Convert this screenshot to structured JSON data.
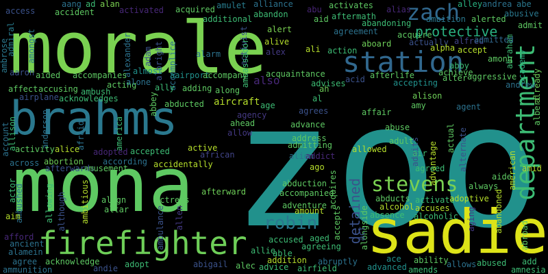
{
  "words": [
    {
      "text": "zoo",
      "color": "#21918c"
    },
    {
      "text": "morale",
      "color": "#7ad151"
    },
    {
      "text": "mona",
      "color": "#5ec962"
    },
    {
      "text": "brahms",
      "color": "#2a788e"
    },
    {
      "text": "sadie",
      "color": "#dde318"
    },
    {
      "text": "firefighter",
      "color": "#6ece58"
    },
    {
      "text": "department",
      "color": "#3dbc74"
    },
    {
      "text": "station",
      "color": "#31688e"
    },
    {
      "text": "zach",
      "color": "#31688e"
    },
    {
      "text": "stevens",
      "color": "#7ad151"
    },
    {
      "text": "protective",
      "color": "#29af7f"
    },
    {
      "text": "robin",
      "color": "#2a788e"
    },
    {
      "text": "detained",
      "color": "#3b528b"
    },
    {
      "text": "access",
      "color": "#3b528b"
    },
    {
      "text": "aang",
      "color": "#2c728e"
    },
    {
      "text": "accident",
      "color": "#5ec962"
    },
    {
      "text": "ad",
      "color": "#3dbc74"
    },
    {
      "text": "alan",
      "color": "#7ad151"
    },
    {
      "text": "activated",
      "color": "#482878"
    },
    {
      "text": "acquired",
      "color": "#5ec962"
    },
    {
      "text": "additional",
      "color": "#3dbc74"
    },
    {
      "text": "amulet",
      "color": "#287c8e"
    },
    {
      "text": "alliance",
      "color": "#2c728e"
    },
    {
      "text": "abandon",
      "color": "#3dbc74"
    },
    {
      "text": "abu",
      "color": "#482475"
    },
    {
      "text": "activates",
      "color": "#5ec962"
    },
    {
      "text": "aftermath",
      "color": "#3dbc74"
    },
    {
      "text": "alias",
      "color": "#482878"
    },
    {
      "text": "alley",
      "color": "#29af7f"
    },
    {
      "text": "andrea",
      "color": "#2c728e"
    },
    {
      "text": "abe",
      "color": "#2a788e"
    },
    {
      "text": "aid",
      "color": "#5ec962"
    },
    {
      "text": "ambition",
      "color": "#2a788e"
    },
    {
      "text": "alerted",
      "color": "#5ec962"
    },
    {
      "text": "abusive",
      "color": "#2a788e"
    },
    {
      "text": "abandoning",
      "color": "#3dbc74"
    },
    {
      "text": "admit",
      "color": "#5ec962"
    },
    {
      "text": "admiral",
      "color": "#287c8e"
    },
    {
      "text": "amongst",
      "color": "#2a788e"
    },
    {
      "text": "alert",
      "color": "#7ad151"
    },
    {
      "text": "agreement",
      "color": "#2c728e"
    },
    {
      "text": "acquire",
      "color": "#5ec962"
    },
    {
      "text": "abraham",
      "color": "#3dbc74"
    },
    {
      "text": "academy",
      "color": "#29af7f"
    },
    {
      "text": "aboard",
      "color": "#6ece58"
    },
    {
      "text": "actually",
      "color": "#3b528b"
    },
    {
      "text": "alfred",
      "color": "#414487"
    },
    {
      "text": "admitted",
      "color": "#31688e"
    },
    {
      "text": "accept",
      "color": "#b5de2b"
    },
    {
      "text": "alpha",
      "color": "#b5de2b"
    },
    {
      "text": "alive",
      "color": "#b5de2b"
    },
    {
      "text": "activist",
      "color": "#3b528b"
    },
    {
      "text": "alex",
      "color": "#443983"
    },
    {
      "text": "ali",
      "color": "#b5de2b"
    },
    {
      "text": "action",
      "color": "#3dbc74"
    },
    {
      "text": "ambrose",
      "color": "#2a788e"
    },
    {
      "text": "alexander",
      "color": "#2c728e"
    },
    {
      "text": "adam",
      "color": "#3b528b"
    },
    {
      "text": "albright",
      "color": "#3b528b"
    },
    {
      "text": "accomplice",
      "color": "#2c728e"
    },
    {
      "text": "alarm",
      "color": "#2c728e"
    },
    {
      "text": "ambassador",
      "color": "#3dbc74"
    },
    {
      "text": "among",
      "color": "#5ec962"
    },
    {
      "text": "abby",
      "color": "#3dbc74"
    },
    {
      "text": "achieve",
      "color": "#5ec962"
    },
    {
      "text": "aggressive",
      "color": "#5ec962"
    },
    {
      "text": "andrew",
      "color": "#2c728e"
    },
    {
      "text": "aaron",
      "color": "#3b528b"
    },
    {
      "text": "aided",
      "color": "#5ec962"
    },
    {
      "text": "accompanies",
      "color": "#5ec962"
    },
    {
      "text": "almost",
      "color": "#21918c"
    },
    {
      "text": "aairport",
      "color": "#21918c"
    },
    {
      "text": "accompany",
      "color": "#5ec962"
    },
    {
      "text": "also",
      "color": "#482878"
    },
    {
      "text": "acquaintance",
      "color": "#5ec962"
    },
    {
      "text": "afterlife",
      "color": "#5ec962"
    },
    {
      "text": "alter",
      "color": "#5ec962"
    },
    {
      "text": "acting",
      "color": "#5ec962"
    },
    {
      "text": "alone",
      "color": "#2c728e"
    },
    {
      "text": "ally",
      "color": "#3dbc74"
    },
    {
      "text": "adding",
      "color": "#5ec962"
    },
    {
      "text": "acid",
      "color": "#3b528b"
    },
    {
      "text": "advises",
      "color": "#3dbc74"
    },
    {
      "text": "accepting",
      "color": "#21918c"
    },
    {
      "text": "affect",
      "color": "#5ec962"
    },
    {
      "text": "accusing",
      "color": "#5ec962"
    },
    {
      "text": "ambush",
      "color": "#3dbc74"
    },
    {
      "text": "along",
      "color": "#5ec962"
    },
    {
      "text": "ah",
      "color": "#6ece58"
    },
    {
      "text": "alison",
      "color": "#6ece58"
    },
    {
      "text": "airplane",
      "color": "#3b528b"
    },
    {
      "text": "acknowledges",
      "color": "#3dbc74"
    },
    {
      "text": "abbey",
      "color": "#5ec962"
    },
    {
      "text": "abducted",
      "color": "#5ec962"
    },
    {
      "text": "aircraft",
      "color": "#b5de2b"
    },
    {
      "text": "al",
      "color": "#3dbc74"
    },
    {
      "text": "amy",
      "color": "#5ec962"
    },
    {
      "text": "agent",
      "color": "#2c728e"
    },
    {
      "text": "albert",
      "color": "#5ec962"
    },
    {
      "text": "already",
      "color": "#6ece58"
    },
    {
      "text": "age",
      "color": "#3dbc74"
    },
    {
      "text": "affair",
      "color": "#5ec962"
    },
    {
      "text": "agrees",
      "color": "#3b528b"
    },
    {
      "text": "allison",
      "color": "#3dbc74"
    },
    {
      "text": "anderson",
      "color": "#2c728e"
    },
    {
      "text": "america",
      "color": "#3dbc74"
    },
    {
      "text": "agency",
      "color": "#443983"
    },
    {
      "text": "ahead",
      "color": "#5ec962"
    },
    {
      "text": "abuse",
      "color": "#5ec962"
    },
    {
      "text": "actual",
      "color": "#5ec962"
    },
    {
      "text": "alternate",
      "color": "#3b528b"
    },
    {
      "text": "account",
      "color": "#2c728e"
    },
    {
      "text": "afraid",
      "color": "#2c728e"
    },
    {
      "text": "allow",
      "color": "#443983"
    },
    {
      "text": "advance",
      "color": "#5ec962"
    },
    {
      "text": "adult",
      "color": "#5ec962"
    },
    {
      "text": "admits",
      "color": "#3b528b"
    },
    {
      "text": "advantage",
      "color": "#b5de2b"
    },
    {
      "text": "activity",
      "color": "#5ec962"
    },
    {
      "text": "alice",
      "color": "#b5de2b"
    },
    {
      "text": "adopted",
      "color": "#482878"
    },
    {
      "text": "accepted",
      "color": "#3dbc74"
    },
    {
      "text": "active",
      "color": "#b5de2b"
    },
    {
      "text": "address",
      "color": "#5ec962"
    },
    {
      "text": "allowed",
      "color": "#b5de2b"
    },
    {
      "text": "american",
      "color": "#b5de2b"
    },
    {
      "text": "across",
      "color": "#2c728e"
    },
    {
      "text": "abortion",
      "color": "#6ece58"
    },
    {
      "text": "according",
      "color": "#2c728e"
    },
    {
      "text": "african",
      "color": "#414487"
    },
    {
      "text": "admitting",
      "color": "#5ec962"
    },
    {
      "text": "alien",
      "color": "#2c728e"
    },
    {
      "text": "addict",
      "color": "#482878"
    },
    {
      "text": "air",
      "color": "#3dbc74"
    },
    {
      "text": "afterwards",
      "color": "#3b528b"
    },
    {
      "text": "amusement",
      "color": "#5ec962"
    },
    {
      "text": "accidentally",
      "color": "#b5de2b"
    },
    {
      "text": "ago",
      "color": "#b5de2b"
    },
    {
      "text": "agreed",
      "color": "#3dbc74"
    },
    {
      "text": "amid",
      "color": "#b5de2b"
    },
    {
      "text": "aide",
      "color": "#5ec962"
    },
    {
      "text": "always",
      "color": "#5ec962"
    },
    {
      "text": "actor",
      "color": "#3dbc74"
    },
    {
      "text": "ambushed",
      "color": "#2c728e"
    },
    {
      "text": "ambitious",
      "color": "#b5de2b"
    },
    {
      "text": "align",
      "color": "#5ec962"
    },
    {
      "text": "altar",
      "color": "#5ec962"
    },
    {
      "text": "afterward",
      "color": "#6ece58"
    },
    {
      "text": "abduction",
      "color": "#5ec962"
    },
    {
      "text": "accompanied",
      "color": "#5ec962"
    },
    {
      "text": "acquires",
      "color": "#5ec962"
    },
    {
      "text": "abducts",
      "color": "#5ec962"
    },
    {
      "text": "activate",
      "color": "#3dbc74"
    },
    {
      "text": "adoptive",
      "color": "#b5de2b"
    },
    {
      "text": "abandoned",
      "color": "#b5de2b"
    },
    {
      "text": "aim",
      "color": "#b5de2b"
    },
    {
      "text": "allowing",
      "color": "#3dbc74"
    },
    {
      "text": "although",
      "color": "#3b528b"
    },
    {
      "text": "actress",
      "color": "#5ec962"
    },
    {
      "text": "ambulance",
      "color": "#3b528b"
    },
    {
      "text": "allen",
      "color": "#443983"
    },
    {
      "text": "adventure",
      "color": "#5ec962"
    },
    {
      "text": "amount",
      "color": "#b5de2b"
    },
    {
      "text": "accepts",
      "color": "#5ec962"
    },
    {
      "text": "alongside",
      "color": "#5ec962"
    },
    {
      "text": "alcohol",
      "color": "#b5de2b"
    },
    {
      "text": "absence",
      "color": "#3dbc74"
    },
    {
      "text": "accuses",
      "color": "#b5de2b"
    },
    {
      "text": "alcoholic",
      "color": "#3dbc74"
    },
    {
      "text": "aging",
      "color": "#443983"
    },
    {
      "text": "abroad",
      "color": "#5ec962"
    },
    {
      "text": "afford",
      "color": "#482878"
    },
    {
      "text": "ancient",
      "color": "#2c728e"
    },
    {
      "text": "alamein",
      "color": "#2c728e"
    },
    {
      "text": "aged",
      "color": "#3dbc74"
    },
    {
      "text": "accused",
      "color": "#3dbc74"
    },
    {
      "text": "allie",
      "color": "#3dbc74"
    },
    {
      "text": "able",
      "color": "#3dbc74"
    },
    {
      "text": "agreeing",
      "color": "#3dbc74"
    },
    {
      "text": "act",
      "color": "#3b528b"
    },
    {
      "text": "agree",
      "color": "#2c728e"
    },
    {
      "text": "acknowledge",
      "color": "#5ec962"
    },
    {
      "text": "adopt",
      "color": "#3dbc74"
    },
    {
      "text": "abigail",
      "color": "#3b528b"
    },
    {
      "text": "alec",
      "color": "#5ec962"
    },
    {
      "text": "addition",
      "color": "#b5de2b"
    },
    {
      "text": "abruptly",
      "color": "#2c728e"
    },
    {
      "text": "ace",
      "color": "#21918c"
    },
    {
      "text": "ability",
      "color": "#5ec962"
    },
    {
      "text": "allows",
      "color": "#2c728e"
    },
    {
      "text": "abused",
      "color": "#3dbc74"
    },
    {
      "text": "add",
      "color": "#3dbc74"
    },
    {
      "text": "ammunition",
      "color": "#2c728e"
    },
    {
      "text": "andie",
      "color": "#3b528b"
    },
    {
      "text": "advice",
      "color": "#3dbc74"
    },
    {
      "text": "airfield",
      "color": "#3dbc74"
    },
    {
      "text": "advanced",
      "color": "#21918c"
    },
    {
      "text": "amends",
      "color": "#3dbc74"
    },
    {
      "text": "amnesia",
      "color": "#3dbc74"
    }
  ]
}
